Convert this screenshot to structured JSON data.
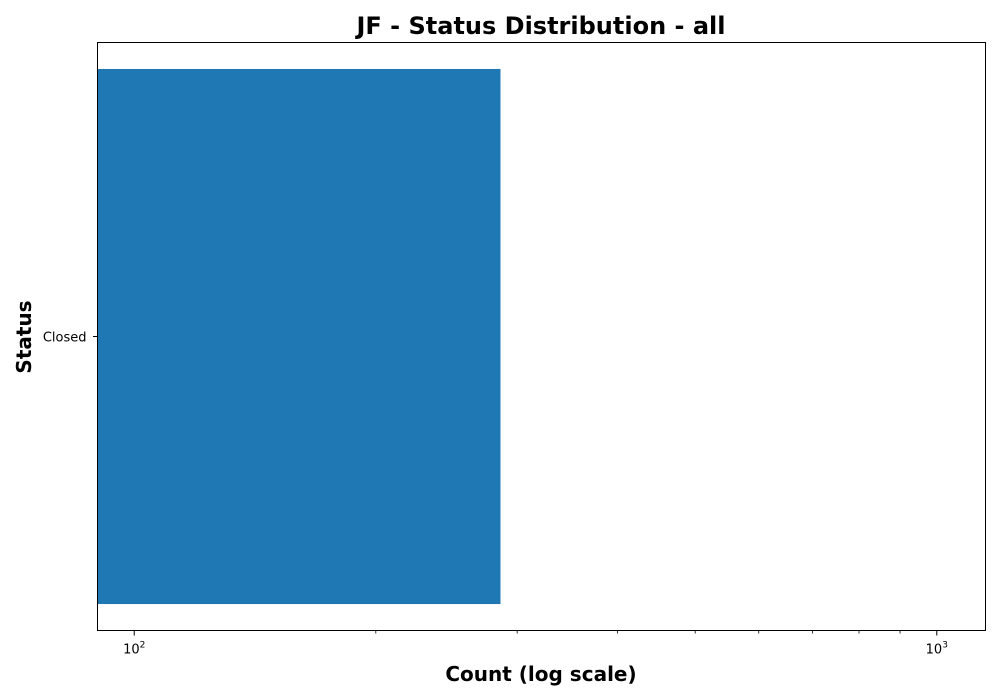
{
  "chart_data": {
    "type": "bar",
    "orientation": "horizontal",
    "title": "JF - Status Distribution - all",
    "xlabel": "Count (log scale)",
    "ylabel": "Status",
    "x_scale": "log",
    "xlim": [
      90,
      1150
    ],
    "categories": [
      "Closed"
    ],
    "values": [
      286
    ],
    "x_ticks": [
      {
        "base": "10",
        "exp": "2",
        "value": 100
      },
      {
        "base": "10",
        "exp": "3",
        "value": 1000
      }
    ],
    "grid": false,
    "colors": {
      "bar": "#1f77b4",
      "axis": "#000000"
    }
  }
}
